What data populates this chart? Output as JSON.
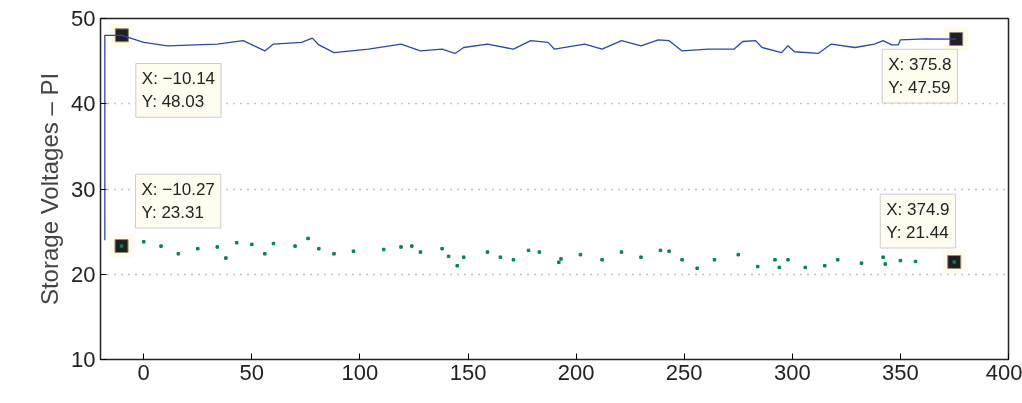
{
  "chart_data": {
    "type": "line",
    "ylabel": "Storage Voltages – PI",
    "xlim": [
      -20,
      400
    ],
    "ylim": [
      10,
      50
    ],
    "xticks": [
      0,
      50,
      100,
      150,
      200,
      250,
      300,
      350,
      400
    ],
    "yticks": [
      10,
      20,
      30,
      40,
      50
    ],
    "grid": "y",
    "line_style": "solid",
    "series": [
      {
        "marker": "none",
        "color": "#2a47b5",
        "x": [
          -18,
          -18,
          -10.14,
          0,
          11,
          34,
          46,
          56,
          60,
          73,
          78,
          81,
          88,
          104,
          119,
          128,
          138,
          144,
          148,
          159,
          171,
          179,
          187,
          190,
          199,
          204,
          212,
          221,
          230,
          238,
          243,
          249,
          261,
          273,
          277,
          283,
          286,
          295,
          298,
          301,
          312,
          318,
          329,
          338,
          342,
          346,
          349,
          350,
          362,
          375.8
        ],
        "values": [
          24,
          48.03,
          48.03,
          47.2,
          46.8,
          47.0,
          47.4,
          46.2,
          47.0,
          47.2,
          47.7,
          46.9,
          46.0,
          46.4,
          47.0,
          46.2,
          46.4,
          45.9,
          46.6,
          47.0,
          46.4,
          47.4,
          47.2,
          46.4,
          46.8,
          47.0,
          46.4,
          47.4,
          46.8,
          47.5,
          47.4,
          46.2,
          46.4,
          46.4,
          47.3,
          47.4,
          46.6,
          46.0,
          46.8,
          46.1,
          45.9,
          47.0,
          46.6,
          47.0,
          47.4,
          46.9,
          46.9,
          47.5,
          47.6,
          47.59
        ]
      },
      {
        "type": "scatter",
        "marker": "square",
        "color": "#00864a",
        "x": [
          -10.27,
          0,
          8,
          16,
          25,
          34,
          38,
          43,
          50,
          56,
          60,
          70,
          76,
          81,
          88,
          97,
          111,
          119,
          124,
          128,
          138,
          141,
          145,
          148,
          159,
          165,
          171,
          178,
          183,
          192,
          193,
          202,
          212,
          221,
          230,
          239,
          243,
          249,
          256,
          264,
          275,
          284,
          292,
          294,
          298,
          306,
          315,
          321,
          332,
          342,
          343,
          350,
          357,
          374.9
        ],
        "values": [
          23.31,
          23.8,
          23.3,
          22.4,
          23.0,
          23.2,
          21.9,
          23.7,
          23.5,
          22.4,
          23.6,
          23.3,
          24.2,
          23.0,
          22.4,
          22.7,
          22.9,
          23.2,
          23.3,
          22.6,
          23.0,
          22.1,
          21.0,
          22.0,
          22.6,
          22.0,
          21.7,
          22.8,
          22.6,
          21.4,
          21.8,
          22.3,
          21.7,
          22.6,
          22.0,
          22.8,
          22.7,
          21.7,
          20.7,
          21.7,
          22.3,
          20.9,
          21.7,
          20.8,
          21.7,
          20.8,
          21.0,
          21.7,
          21.3,
          22.0,
          21.2,
          21.6,
          21.5,
          21.44
        ]
      }
    ],
    "annotations": [
      {
        "text": "X: −10.14\nY: 48.03",
        "x": -10.14,
        "y": 48.03
      },
      {
        "text": "X: 375.8\nY: 47.59",
        "x": 375.8,
        "y": 47.59
      },
      {
        "text": "X: −10.27\nY: 23.31",
        "x": -10.27,
        "y": 23.31
      },
      {
        "text": "X: 374.9\nY: 21.44",
        "x": 374.9,
        "y": 21.44
      }
    ]
  }
}
